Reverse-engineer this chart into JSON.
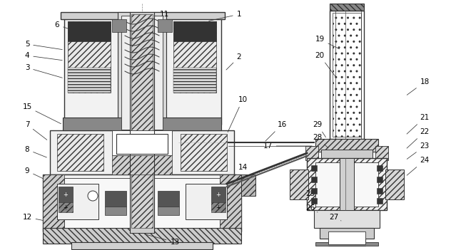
{
  "bg_color": "#ffffff",
  "line_color": "#333333",
  "figsize": [
    6.46,
    3.51
  ],
  "dpi": 100
}
